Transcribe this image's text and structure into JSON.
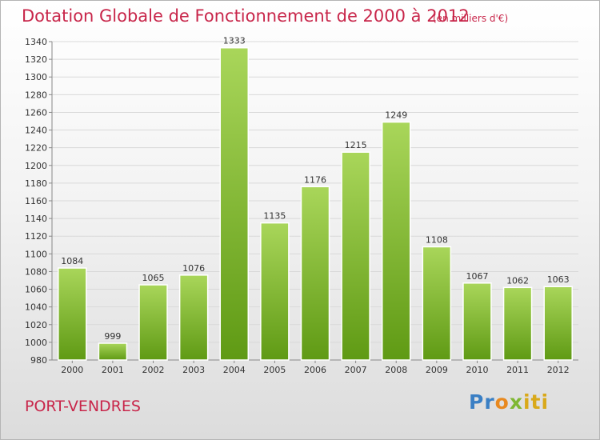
{
  "header": {
    "title": "Dotation Globale de Fonctionnement de 2000 à 2012",
    "unit": "(en milliers d'€)"
  },
  "footer": {
    "commune": "PORT-VENDRES",
    "logo_text": "Proxiti"
  },
  "colors": {
    "title": "#c8264a",
    "bar_light": "#a9d65a",
    "bar_dark": "#5f9a14",
    "grid": "#d9d9d9"
  },
  "chart_data": {
    "type": "bar",
    "title": "Dotation Globale de Fonctionnement de 2000 à 2012",
    "subtitle": "(en milliers d'€)",
    "xlabel": "",
    "ylabel": "",
    "categories": [
      "2000",
      "2001",
      "2002",
      "2003",
      "2004",
      "2005",
      "2006",
      "2007",
      "2008",
      "2009",
      "2010",
      "2011",
      "2012"
    ],
    "values": [
      1084,
      999,
      1065,
      1076,
      1333,
      1135,
      1176,
      1215,
      1249,
      1108,
      1067,
      1062,
      1063
    ],
    "ylim": [
      980,
      1340
    ],
    "yticks": [
      980,
      1000,
      1020,
      1040,
      1060,
      1080,
      1100,
      1120,
      1140,
      1160,
      1180,
      1200,
      1220,
      1240,
      1260,
      1280,
      1300,
      1320,
      1340
    ],
    "grid": true,
    "legend": "none"
  }
}
